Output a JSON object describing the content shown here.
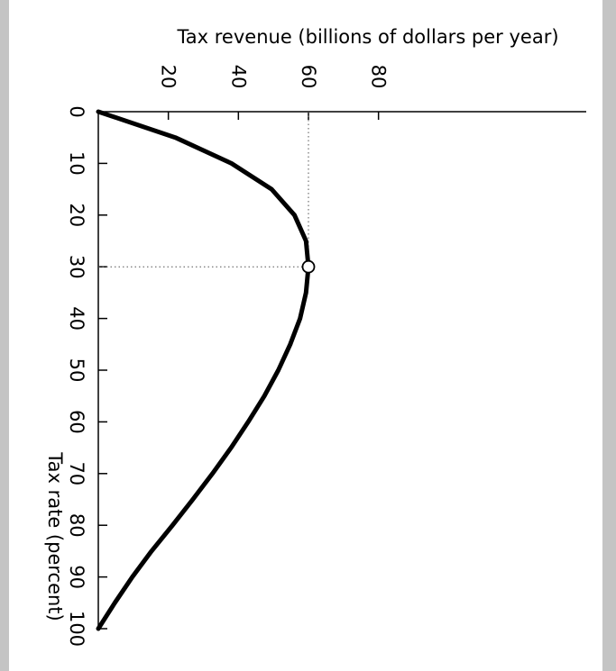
{
  "chart_data": {
    "type": "line",
    "title": "",
    "xlabel": "Tax rate (percent)",
    "ylabel": "Tax revenue (billions of dollars per year)",
    "xlim": [
      0,
      100
    ],
    "ylim": [
      0,
      80
    ],
    "x_ticks": [
      "0",
      "10",
      "20",
      "30",
      "40",
      "50",
      "60",
      "70",
      "80",
      "90",
      "100"
    ],
    "y_ticks": [
      "20",
      "40",
      "60",
      "80"
    ],
    "orientation": "rotated 90 degrees clockwise",
    "grid": false,
    "legend": "none",
    "series": [
      {
        "x": [
          0,
          5,
          10,
          15,
          20,
          25,
          30,
          35,
          40,
          45,
          50,
          55,
          60,
          65,
          70,
          75,
          80,
          85,
          90,
          95,
          100
        ],
        "y": [
          0,
          22,
          38,
          49.5,
          56,
          59.3,
          60,
          59.3,
          57.6,
          54.8,
          51.4,
          47.4,
          42.8,
          37.9,
          32.6,
          27,
          21.2,
          15.2,
          9.7,
          4.7,
          0
        ]
      }
    ],
    "marker": {
      "x": 30,
      "y": 60,
      "style": "open circle"
    },
    "reference_lines": {
      "x": 30,
      "y": 60,
      "style": "dotted"
    }
  }
}
